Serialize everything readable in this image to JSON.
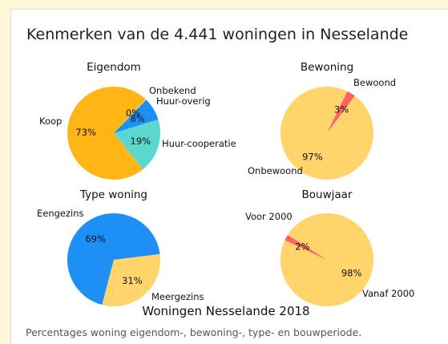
{
  "header": {
    "title": "Kenmerken van de 4.441 woningen in Nesselande"
  },
  "caption": "Percentages woning eigendom-, bewoning-, type- en bouwperiode.",
  "chart_data": {
    "type": "pie",
    "suptitle": "Woningen Nesselande 2018",
    "charts": [
      {
        "title": "Eigendom",
        "slices": [
          {
            "label": "Koop",
            "pct_label": "73%",
            "value": 73,
            "color": "#ffb515"
          },
          {
            "label": "Huur-cooperatie",
            "pct_label": "19%",
            "value": 19,
            "color": "#5ad8d0"
          },
          {
            "label": "Huur-overig",
            "pct_label": "8%",
            "value": 8,
            "color": "#1e8ff5"
          },
          {
            "label": "Onbekend",
            "pct_label": "0%",
            "value": 0.3,
            "color": "#ffd56b"
          }
        ]
      },
      {
        "title": "Bewoning",
        "slices": [
          {
            "label": "Bewoond",
            "pct_label": "97%",
            "value": 97,
            "color": "#ffd56b"
          },
          {
            "label": "Onbewoond",
            "pct_label": "3%",
            "value": 3,
            "color": "#ff6060"
          }
        ]
      },
      {
        "title": "Type woning",
        "slices": [
          {
            "label": "Eengezins",
            "pct_label": "69%",
            "value": 69,
            "color": "#1e8ff5"
          },
          {
            "label": "Meergezins",
            "pct_label": "31%",
            "value": 31,
            "color": "#ffd56b"
          }
        ]
      },
      {
        "title": "Bouwjaar",
        "slices": [
          {
            "label": "Vanaf 2000",
            "pct_label": "98%",
            "value": 98,
            "color": "#ffd56b"
          },
          {
            "label": "Voor 2000",
            "pct_label": "2%",
            "value": 2,
            "color": "#ff6060"
          }
        ]
      }
    ]
  }
}
